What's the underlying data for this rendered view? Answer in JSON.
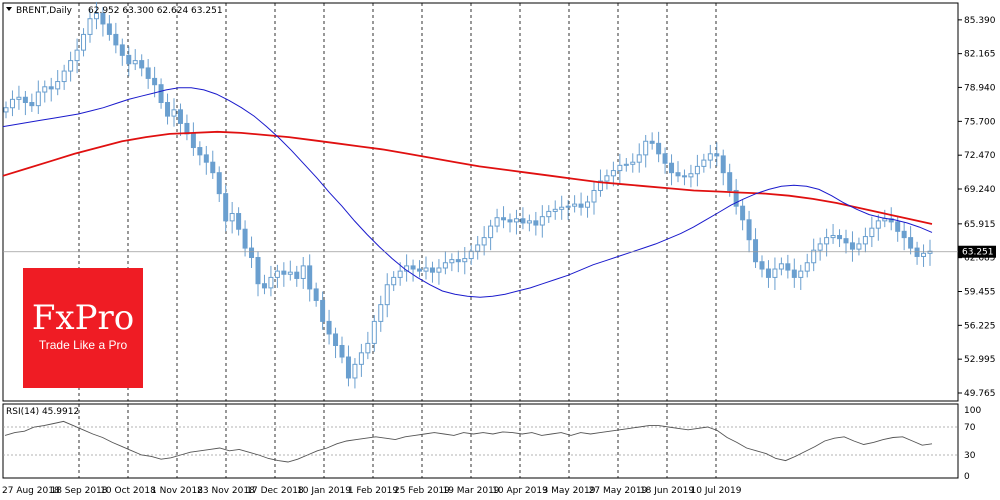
{
  "header": {
    "symbol": "BRENT,Daily",
    "ohlc": "62.952 63.300 62.624 63.251"
  },
  "price_axis": {
    "ticks": [
      "85.390",
      "82.165",
      "78.940",
      "75.700",
      "72.470",
      "69.240",
      "65.915",
      "62.685",
      "59.455",
      "56.225",
      "52.995",
      "49.765"
    ],
    "current_price_label": "63.251"
  },
  "rsi_panel": {
    "label": "RSI(14) 45.9912",
    "ticks": [
      "100",
      "70",
      "30",
      "0"
    ]
  },
  "time_axis": {
    "labels": [
      "27 Aug 2018",
      "18 Sep 2018",
      "10 Oct 2018",
      "1 Nov 2018",
      "23 Nov 2018",
      "17 Dec 2018",
      "10 Jan 2019",
      "1 Feb 2019",
      "25 Feb 2019",
      "19 Mar 2019",
      "10 Apr 2019",
      "3 May 2019",
      "27 May 2019",
      "18 Jun 2019",
      "10 Jul 2019"
    ]
  },
  "logo": {
    "main": "FxPro",
    "tagline": "Trade Like a Pro"
  },
  "colors": {
    "candle": "#6a9fcf",
    "ma_fast": "#1a1acc",
    "ma_slow": "#e01010",
    "rsi_line": "#555555",
    "logo_bg": "#ef1c24"
  },
  "chart_data": {
    "type": "candlestick",
    "title": "BRENT,Daily",
    "ylim": [
      49.0,
      87.0
    ],
    "x_labels": [
      "27 Aug 2018",
      "18 Sep 2018",
      "10 Oct 2018",
      "1 Nov 2018",
      "23 Nov 2018",
      "17 Dec 2018",
      "10 Jan 2019",
      "1 Feb 2019",
      "25 Feb 2019",
      "19 Mar 2019",
      "10 Apr 2019",
      "3 May 2019",
      "27 May 2019",
      "18 Jun 2019",
      "10 Jul 2019"
    ],
    "price_close": [
      77.0,
      77.8,
      78.0,
      77.5,
      77.2,
      78.5,
      79.0,
      78.8,
      79.5,
      80.5,
      81.5,
      82.5,
      84.0,
      85.5,
      86.0,
      85.0,
      84.0,
      83.0,
      82.0,
      81.2,
      81.5,
      80.8,
      79.8,
      79.2,
      77.5,
      76.2,
      76.8,
      75.5,
      74.5,
      73.2,
      72.5,
      71.8,
      70.8,
      68.8,
      66.2,
      66.9,
      65.4,
      63.6,
      62.7,
      60.2,
      59.8,
      60.8,
      61.4,
      61.1,
      61.3,
      60.7,
      61.9,
      59.7,
      58.6,
      56.6,
      55.4,
      54.3,
      53.2,
      51.2,
      52.5,
      53.6,
      54.5,
      56.6,
      58.2,
      60.1,
      60.8,
      61.4,
      61.9,
      61.6,
      61.4,
      61.7,
      61.3,
      61.7,
      62.2,
      62.5,
      62.3,
      62.6,
      63.3,
      63.9,
      64.6,
      65.7,
      66.5,
      66.3,
      66.1,
      66.4,
      66.0,
      66.2,
      65.8,
      66.6,
      67.1,
      67.3,
      67.5,
      67.6,
      67.8,
      67.5,
      68.0,
      69.1,
      70.0,
      70.5,
      71.0,
      71.5,
      71.6,
      71.8,
      72.5,
      73.8,
      73.6,
      72.6,
      71.7,
      70.8,
      70.5,
      70.4,
      70.7,
      71.4,
      72.0,
      72.6,
      72.4,
      70.8,
      69.1,
      67.6,
      66.3,
      64.4,
      62.3,
      61.6,
      60.8,
      61.6,
      62.1,
      61.5,
      60.8,
      61.4,
      62.2,
      63.4,
      64.0,
      64.6,
      64.8,
      64.5,
      64.1,
      63.5,
      64.0,
      64.7,
      65.5,
      66.2,
      66.4,
      66.1,
      65.2,
      64.6,
      63.6,
      62.8,
      63.1,
      63.3
    ],
    "ma_fast": [
      75.2,
      75.4,
      75.6,
      75.8,
      76.0,
      76.2,
      76.4,
      76.7,
      77.0,
      77.4,
      77.8,
      78.1,
      78.4,
      78.7,
      78.9,
      78.9,
      78.7,
      78.3,
      77.7,
      77.0,
      76.2,
      75.2,
      74.1,
      72.9,
      71.6,
      70.3,
      68.9,
      67.6,
      66.2,
      64.9,
      63.7,
      62.6,
      61.6,
      60.8,
      60.1,
      59.5,
      59.2,
      59.0,
      58.9,
      59.0,
      59.2,
      59.5,
      59.8,
      60.2,
      60.6,
      61.0,
      61.5,
      62.0,
      62.4,
      62.8,
      63.2,
      63.6,
      64.0,
      64.5,
      65.0,
      65.6,
      66.3,
      67.0,
      67.7,
      68.3,
      68.8,
      69.2,
      69.5,
      69.6,
      69.5,
      69.2,
      68.6,
      67.9,
      67.3,
      66.8,
      66.5,
      66.3,
      66.0,
      65.6,
      65.1
    ],
    "ma_slow": [
      70.5,
      71.2,
      71.9,
      72.6,
      73.2,
      73.8,
      74.2,
      74.5,
      74.6,
      74.7,
      74.6,
      74.4,
      74.2,
      73.9,
      73.6,
      73.3,
      73.0,
      72.6,
      72.2,
      71.8,
      71.4,
      71.1,
      70.8,
      70.5,
      70.2,
      69.9,
      69.7,
      69.5,
      69.3,
      69.1,
      69.0,
      68.9,
      68.8,
      68.6,
      68.3,
      67.9,
      67.4,
      66.9,
      66.4,
      65.9
    ],
    "rsi": [
      58,
      62,
      64,
      70,
      72,
      75,
      78,
      72,
      66,
      60,
      55,
      48,
      42,
      36,
      30,
      28,
      24,
      26,
      30,
      34,
      36,
      38,
      40,
      36,
      38,
      34,
      30,
      25,
      22,
      20,
      24,
      30,
      36,
      40,
      46,
      50,
      52,
      54,
      56,
      54,
      52,
      56,
      58,
      60,
      62,
      60,
      58,
      62,
      60,
      62,
      60,
      63,
      62,
      60,
      62,
      58,
      60,
      62,
      58,
      62,
      60,
      62,
      64,
      66,
      68,
      70,
      72,
      72,
      70,
      68,
      66,
      68,
      70,
      65,
      55,
      48,
      40,
      36,
      32,
      25,
      22,
      28,
      35,
      42,
      50,
      54,
      56,
      50,
      45,
      48,
      52,
      55,
      56,
      50,
      44,
      46
    ],
    "rsi_ylim": [
      0,
      100
    ],
    "rsi_levels": [
      70,
      30
    ],
    "current_value": 63.251,
    "grid": "vertical dashed at time labels"
  }
}
